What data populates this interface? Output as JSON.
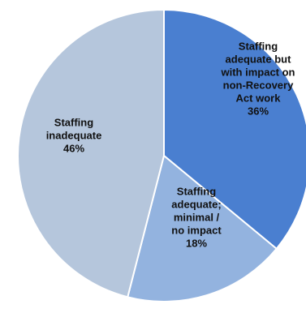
{
  "chart_data": {
    "type": "pie",
    "slices": [
      {
        "label_lines": [
          "Staffing",
          "adequate but",
          "with impact on",
          "non-Recovery",
          "Act work"
        ],
        "percent_label": "36%",
        "value": 36,
        "color": "#4a7fd0"
      },
      {
        "label_lines": [
          "Staffing",
          "adequate;",
          "minimal /",
          "no impact"
        ],
        "percent_label": "18%",
        "value": 18,
        "color": "#93b3df"
      },
      {
        "label_lines": [
          "Staffing",
          "inadequate"
        ],
        "percent_label": "46%",
        "value": 46,
        "color": "#b5c6dc"
      }
    ],
    "start_angle_deg": 0,
    "direction": "clockwise",
    "title": "",
    "legend": "none"
  }
}
